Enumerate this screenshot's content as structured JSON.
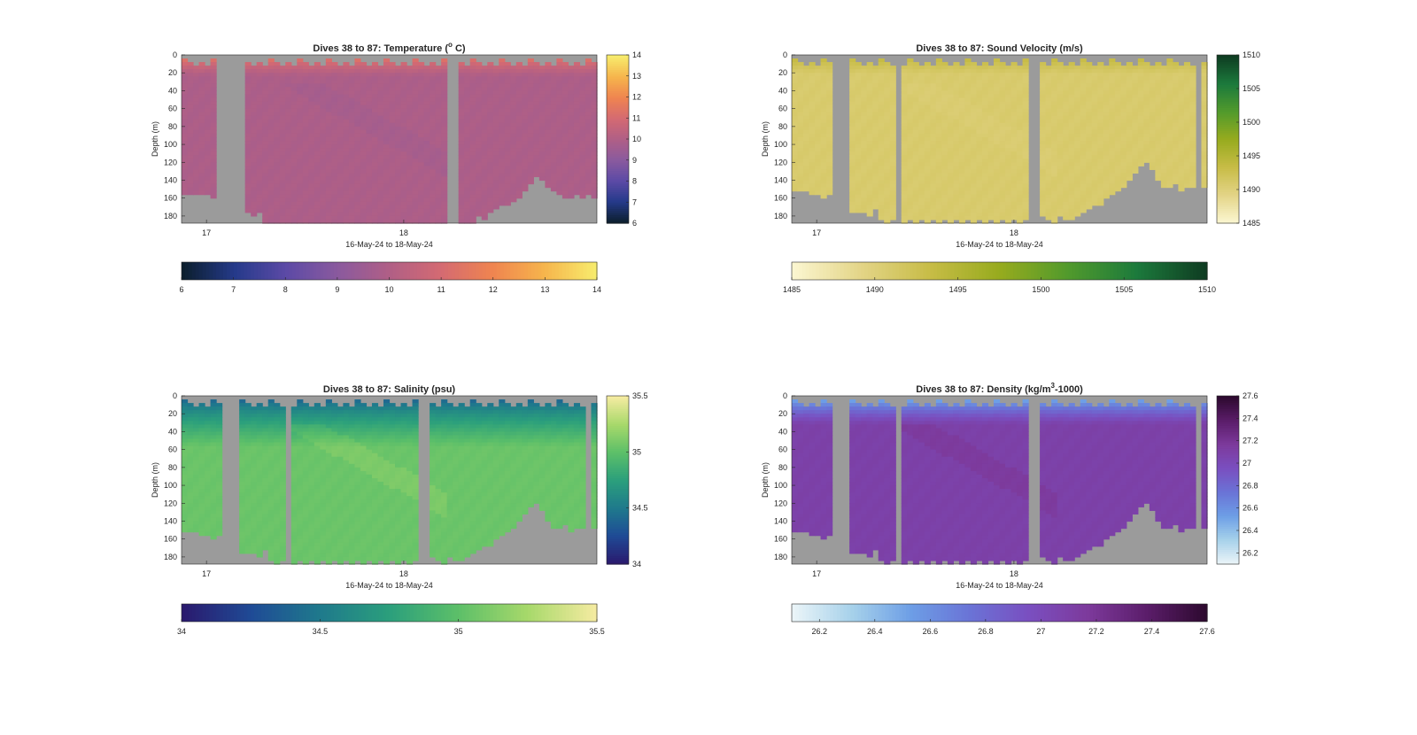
{
  "figure": {
    "background": "#ffffff",
    "nodata_color": "#9b9b9b"
  },
  "chart_data": [
    {
      "type": "heatmap",
      "id": "temperature",
      "title": "Dives 38 to 87: Temperature (° C)",
      "title_parts": {
        "pre": "Dives 38 to 87: Temperature (",
        "sup": "o",
        "post": " C)"
      },
      "xlabel": "16-May-24 to 18-May-24",
      "ylabel": "Depth (m)",
      "x_ticks": [
        "17",
        "18"
      ],
      "y_ticks": [
        "0",
        "20",
        "40",
        "60",
        "80",
        "100",
        "120",
        "140",
        "160",
        "180"
      ],
      "ylim": [
        0,
        188
      ],
      "colorbar_ticks": [
        "6",
        "7",
        "8",
        "9",
        "10",
        "11",
        "12",
        "13",
        "14"
      ],
      "horizontal_colorbar_ticks": [
        "6",
        "7",
        "8",
        "9",
        "10",
        "11",
        "12",
        "13",
        "14"
      ],
      "clim": [
        6,
        14
      ],
      "colormap": [
        "#0c1f2e",
        "#253a8a",
        "#5c4aa6",
        "#8a5a9e",
        "#b05f86",
        "#d46a72",
        "#ef8450",
        "#f6b44c",
        "#f7eb6c"
      ],
      "surface_value": 11.8,
      "deep_value": 9.9,
      "mix_depth_m": 22,
      "nodata_columns": [
        [
          8,
          10
        ],
        [
          46,
          47
        ]
      ],
      "bottom_depth_m": [
        155,
        155,
        155,
        156,
        154,
        158,
        0,
        0,
        0,
        0,
        176,
        174,
        178,
        176,
        185,
        185,
        185,
        185,
        185,
        185,
        185,
        185,
        185,
        185,
        185,
        185,
        185,
        185,
        185,
        185,
        185,
        185,
        185,
        185,
        185,
        185,
        185,
        185,
        185,
        185,
        185,
        185,
        185,
        185,
        185,
        185,
        0,
        0,
        185,
        185,
        185,
        180,
        184,
        176,
        170,
        168,
        165,
        162,
        158,
        150,
        143,
        136,
        140,
        148,
        150,
        155,
        158,
        160,
        155,
        158,
        156,
        158
      ]
    },
    {
      "type": "heatmap",
      "id": "sound_velocity",
      "title": "Dives 38 to 87: Sound Velocity (m/s)",
      "title_parts": {
        "pre": "Dives 38 to 87: Sound Velocity (m/s)",
        "sup": "",
        "post": ""
      },
      "xlabel": "16-May-24 to 18-May-24",
      "ylabel": "Depth (m)",
      "x_ticks": [
        "17",
        "18"
      ],
      "y_ticks": [
        "0",
        "20",
        "40",
        "60",
        "80",
        "100",
        "120",
        "140",
        "160",
        "180"
      ],
      "ylim": [
        0,
        188
      ],
      "colorbar_ticks": [
        "1485",
        "1490",
        "1495",
        "1500",
        "1505",
        "1510"
      ],
      "horizontal_colorbar_ticks": [
        "1485",
        "1490",
        "1495",
        "1500",
        "1505",
        "1510"
      ],
      "clim": [
        1485,
        1510
      ],
      "colormap": [
        "#fbf6d0",
        "#e3d486",
        "#c7bc46",
        "#97ab1e",
        "#519a2c",
        "#1c7a3c",
        "#0f3d22"
      ],
      "surface_value": 1494.5,
      "deep_value": 1490.8,
      "mix_depth_m": 20,
      "nodata_columns": [
        [
          7,
          9
        ],
        [
          18,
          18
        ],
        [
          41,
          42
        ],
        [
          70,
          70
        ]
      ],
      "bottom_depth_m": [
        152,
        150,
        152,
        153,
        156,
        158,
        155,
        0,
        0,
        0,
        175,
        173,
        176,
        180,
        172,
        182,
        185,
        182,
        0,
        185,
        182,
        185,
        182,
        185,
        182,
        185,
        182,
        185,
        182,
        185,
        182,
        185,
        182,
        185,
        182,
        185,
        182,
        185,
        182,
        185,
        182,
        0,
        0,
        180,
        182,
        185,
        180,
        184,
        182,
        178,
        175,
        172,
        168,
        165,
        160,
        155,
        150,
        145,
        140,
        132,
        124,
        118,
        128,
        140,
        145,
        148,
        142,
        150,
        148,
        146,
        0,
        148
      ]
    },
    {
      "type": "heatmap",
      "id": "salinity",
      "title": "Dives 38 to 87: Salinity (psu)",
      "title_parts": {
        "pre": "Dives 38 to 87: Salinity (psu)",
        "sup": "",
        "post": ""
      },
      "xlabel": "16-May-24 to 18-May-24",
      "ylabel": "Depth (m)",
      "x_ticks": [
        "17",
        "18"
      ],
      "y_ticks": [
        "0",
        "20",
        "40",
        "60",
        "80",
        "100",
        "120",
        "140",
        "160",
        "180"
      ],
      "ylim": [
        0,
        188
      ],
      "colorbar_ticks": [
        "34",
        "34.5",
        "35",
        "35.5"
      ],
      "horizontal_colorbar_ticks": [
        "34",
        "34.5",
        "35",
        "35.5"
      ],
      "clim": [
        34,
        35.5
      ],
      "colormap": [
        "#2a1a6e",
        "#1f4b96",
        "#1f7a8c",
        "#2b9f7c",
        "#5cbf69",
        "#a6d86a",
        "#f4eba0"
      ],
      "surface_value": 34.3,
      "deep_value": 35.05,
      "mix_depth_m": 55,
      "nodata_columns": [
        [
          7,
          9
        ],
        [
          18,
          18
        ],
        [
          41,
          42
        ],
        [
          70,
          70
        ]
      ],
      "bottom_depth_m": [
        152,
        150,
        152,
        153,
        156,
        158,
        155,
        0,
        0,
        0,
        175,
        173,
        176,
        180,
        172,
        182,
        185,
        182,
        0,
        185,
        182,
        185,
        182,
        185,
        182,
        185,
        182,
        185,
        182,
        185,
        182,
        185,
        182,
        185,
        182,
        185,
        182,
        185,
        182,
        185,
        182,
        0,
        0,
        180,
        182,
        185,
        180,
        184,
        182,
        178,
        175,
        172,
        168,
        165,
        160,
        155,
        150,
        145,
        140,
        132,
        124,
        118,
        128,
        140,
        145,
        148,
        142,
        150,
        148,
        146,
        0,
        148
      ]
    },
    {
      "type": "heatmap",
      "id": "density",
      "title": "Dives 38 to 87: Density (kg/m³-1000)",
      "title_parts": {
        "pre": "Dives 38 to 87: Density (kg/m",
        "sup": "3",
        "post": "-1000)"
      },
      "xlabel": "16-May-24 to 18-May-24",
      "ylabel": "Depth (m)",
      "x_ticks": [
        "17",
        "18"
      ],
      "y_ticks": [
        "0",
        "20",
        "40",
        "60",
        "80",
        "100",
        "120",
        "140",
        "160",
        "180"
      ],
      "ylim": [
        0,
        188
      ],
      "colorbar_ticks": [
        "26.2",
        "26.4",
        "26.6",
        "26.8",
        "27",
        "27.2",
        "27.4",
        "27.6"
      ],
      "horizontal_colorbar_ticks": [
        "26.2",
        "26.4",
        "26.6",
        "26.8",
        "27",
        "27.2",
        "27.4",
        "27.6"
      ],
      "clim": [
        26.1,
        27.6
      ],
      "colormap": [
        "#eaf4f8",
        "#a6d1ea",
        "#6d9ee6",
        "#6a73d6",
        "#7a4fc0",
        "#7d3a9c",
        "#5b1d6a",
        "#2e0a30"
      ],
      "surface_value": 26.35,
      "deep_value": 27.1,
      "mix_depth_m": 30,
      "nodata_columns": [
        [
          7,
          9
        ],
        [
          18,
          18
        ],
        [
          41,
          42
        ],
        [
          70,
          70
        ]
      ],
      "bottom_depth_m": [
        152,
        150,
        152,
        153,
        156,
        158,
        155,
        0,
        0,
        0,
        175,
        173,
        176,
        180,
        172,
        182,
        185,
        182,
        0,
        185,
        182,
        185,
        182,
        185,
        182,
        185,
        182,
        185,
        182,
        185,
        182,
        185,
        182,
        185,
        182,
        185,
        182,
        185,
        182,
        185,
        182,
        0,
        0,
        180,
        182,
        185,
        180,
        184,
        182,
        178,
        175,
        172,
        168,
        165,
        160,
        155,
        150,
        145,
        140,
        132,
        124,
        118,
        128,
        140,
        145,
        148,
        142,
        150,
        148,
        146,
        0,
        148
      ]
    }
  ]
}
